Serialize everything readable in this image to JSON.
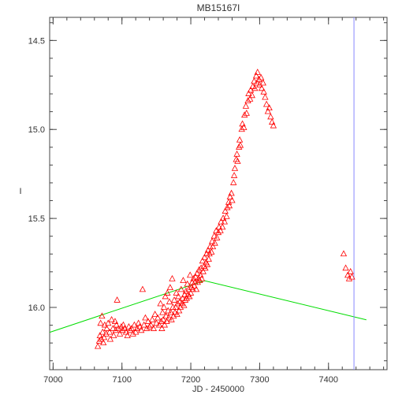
{
  "chart_data": {
    "type": "scatter",
    "title": "MB15167I",
    "xlabel": "JD - 2450000",
    "ylabel": "I",
    "xlim": [
      6995,
      7485
    ],
    "ylim": [
      16.35,
      14.37
    ],
    "y_inverted": true,
    "grid": false,
    "x_ticks": [
      {
        "value": 7000,
        "label": "7000"
      },
      {
        "value": 7100,
        "label": "7100"
      },
      {
        "value": 7200,
        "label": "7200"
      },
      {
        "value": 7300,
        "label": "7300"
      },
      {
        "value": 7400,
        "label": "7400"
      }
    ],
    "y_ticks": [
      {
        "value": 14.5,
        "label": "14.5"
      },
      {
        "value": 15.0,
        "label": "15.0"
      },
      {
        "value": 15.5,
        "label": "15.5"
      },
      {
        "value": 16.0,
        "label": "16.0"
      }
    ],
    "x_minor_step": 20,
    "y_minor_step": 0.1,
    "colors": {
      "observations": "#ff0000",
      "model_line": "#00dd00",
      "vertical_marker": "#8888ff",
      "axes": "#444444"
    },
    "series": [
      {
        "marker": "triangle-open",
        "points": [
          [
            7065,
            16.22
          ],
          [
            7067,
            16.19
          ],
          [
            7068,
            16.16
          ],
          [
            7069,
            16.09
          ],
          [
            7070,
            16.18
          ],
          [
            7071,
            16.05
          ],
          [
            7072,
            16.14
          ],
          [
            7073,
            16.2
          ],
          [
            7074,
            16.17
          ],
          [
            7075,
            16.1
          ],
          [
            7077,
            16.15
          ],
          [
            7078,
            16.12
          ],
          [
            7080,
            16.09
          ],
          [
            7082,
            16.14
          ],
          [
            7083,
            16.18
          ],
          [
            7085,
            16.07
          ],
          [
            7087,
            16.12
          ],
          [
            7088,
            16.16
          ],
          [
            7090,
            16.08
          ],
          [
            7091,
            16.13
          ],
          [
            7092,
            16.1
          ],
          [
            7093,
            15.96
          ],
          [
            7095,
            16.12
          ],
          [
            7097,
            16.15
          ],
          [
            7099,
            16.11
          ],
          [
            7101,
            16.13
          ],
          [
            7102,
            16.1
          ],
          [
            7104,
            16.12
          ],
          [
            7106,
            16.14
          ],
          [
            7108,
            16.16
          ],
          [
            7110,
            16.11
          ],
          [
            7112,
            16.13
          ],
          [
            7114,
            16.12
          ],
          [
            7116,
            16.15
          ],
          [
            7118,
            16.1
          ],
          [
            7120,
            16.14
          ],
          [
            7122,
            16.12
          ],
          [
            7124,
            16.09
          ],
          [
            7126,
            16.11
          ],
          [
            7128,
            16.13
          ],
          [
            7130,
            15.9
          ],
          [
            7132,
            16.1
          ],
          [
            7134,
            16.06
          ],
          [
            7136,
            16.12
          ],
          [
            7138,
            16.08
          ],
          [
            7140,
            16.11
          ],
          [
            7142,
            16.1
          ],
          [
            7144,
            16.07
          ],
          [
            7146,
            16.12
          ],
          [
            7148,
            16.04
          ],
          [
            7150,
            16.09
          ],
          [
            7152,
            16.06
          ],
          [
            7154,
            16.1
          ],
          [
            7156,
            15.98
          ],
          [
            7157,
            16.08
          ],
          [
            7158,
            16.12
          ],
          [
            7159,
            16.03
          ],
          [
            7160,
            16.07
          ],
          [
            7161,
            16.0
          ],
          [
            7162,
            16.1
          ],
          [
            7163,
            15.94
          ],
          [
            7164,
            16.05
          ],
          [
            7165,
            16.08
          ],
          [
            7166,
            15.92
          ],
          [
            7167,
            16.02
          ],
          [
            7168,
            16.06
          ],
          [
            7169,
            15.97
          ],
          [
            7170,
            15.89
          ],
          [
            7171,
            16.03
          ],
          [
            7172,
            16.07
          ],
          [
            7173,
            15.84
          ],
          [
            7174,
            16.0
          ],
          [
            7175,
            16.05
          ],
          [
            7176,
            15.96
          ],
          [
            7177,
            16.03
          ],
          [
            7178,
            16.0
          ],
          [
            7179,
            15.92
          ],
          [
            7180,
            16.04
          ],
          [
            7181,
            15.98
          ],
          [
            7182,
            15.94
          ],
          [
            7183,
            16.02
          ],
          [
            7184,
            15.97
          ],
          [
            7185,
            16.0
          ],
          [
            7186,
            15.9
          ],
          [
            7187,
            15.98
          ],
          [
            7188,
            15.95
          ],
          [
            7189,
            15.85
          ],
          [
            7190,
            15.99
          ],
          [
            7191,
            15.93
          ],
          [
            7192,
            15.96
          ],
          [
            7193,
            15.91
          ],
          [
            7194,
            15.95
          ],
          [
            7195,
            15.87
          ],
          [
            7196,
            15.93
          ],
          [
            7197,
            15.9
          ],
          [
            7198,
            15.94
          ],
          [
            7199,
            15.82
          ],
          [
            7200,
            15.92
          ],
          [
            7201,
            15.89
          ],
          [
            7202,
            15.86
          ],
          [
            7203,
            15.9
          ],
          [
            7204,
            15.84
          ],
          [
            7205,
            15.88
          ],
          [
            7206,
            15.86
          ],
          [
            7207,
            15.83
          ],
          [
            7208,
            15.9
          ],
          [
            7209,
            15.81
          ],
          [
            7210,
            15.86
          ],
          [
            7211,
            15.84
          ],
          [
            7212,
            15.79
          ],
          [
            7213,
            15.85
          ],
          [
            7214,
            15.82
          ],
          [
            7215,
            15.78
          ],
          [
            7216,
            15.84
          ],
          [
            7217,
            15.74
          ],
          [
            7218,
            15.8
          ],
          [
            7219,
            15.77
          ],
          [
            7220,
            15.72
          ],
          [
            7221,
            15.78
          ],
          [
            7222,
            15.75
          ],
          [
            7223,
            15.7
          ],
          [
            7224,
            15.76
          ],
          [
            7225,
            15.68
          ],
          [
            7226,
            15.73
          ],
          [
            7227,
            15.7
          ],
          [
            7228,
            15.66
          ],
          [
            7230,
            15.69
          ],
          [
            7231,
            15.63
          ],
          [
            7232,
            15.66
          ],
          [
            7234,
            15.6
          ],
          [
            7235,
            15.64
          ],
          [
            7237,
            15.57
          ],
          [
            7238,
            15.61
          ],
          [
            7240,
            15.58
          ],
          [
            7241,
            15.55
          ],
          [
            7243,
            15.57
          ],
          [
            7244,
            15.52
          ],
          [
            7246,
            15.55
          ],
          [
            7247,
            15.5
          ],
          [
            7249,
            15.52
          ],
          [
            7250,
            15.46
          ],
          [
            7252,
            15.49
          ],
          [
            7253,
            15.44
          ],
          [
            7255,
            15.41
          ],
          [
            7256,
            15.43
          ],
          [
            7257,
            15.38
          ],
          [
            7259,
            15.36
          ],
          [
            7260,
            15.4
          ],
          [
            7262,
            15.3
          ],
          [
            7263,
            15.26
          ],
          [
            7264,
            15.22
          ],
          [
            7266,
            15.17
          ],
          [
            7267,
            15.14
          ],
          [
            7268,
            15.18
          ],
          [
            7270,
            15.1
          ],
          [
            7271,
            15.06
          ],
          [
            7272,
            15.09
          ],
          [
            7274,
            15.0
          ],
          [
            7275,
            14.97
          ],
          [
            7277,
            14.99
          ],
          [
            7278,
            14.92
          ],
          [
            7280,
            14.87
          ],
          [
            7281,
            14.91
          ],
          [
            7283,
            14.84
          ],
          [
            7284,
            14.8
          ],
          [
            7286,
            14.83
          ],
          [
            7287,
            14.78
          ],
          [
            7289,
            14.81
          ],
          [
            7290,
            14.76
          ],
          [
            7292,
            14.73
          ],
          [
            7293,
            14.77
          ],
          [
            7295,
            14.7
          ],
          [
            7296,
            14.74
          ],
          [
            7297,
            14.68
          ],
          [
            7299,
            14.72
          ],
          [
            7300,
            14.75
          ],
          [
            7302,
            14.71
          ],
          [
            7303,
            14.77
          ],
          [
            7305,
            14.74
          ],
          [
            7306,
            14.79
          ],
          [
            7308,
            14.82
          ],
          [
            7310,
            14.86
          ],
          [
            7312,
            14.9
          ],
          [
            7314,
            14.88
          ],
          [
            7316,
            14.93
          ],
          [
            7318,
            14.96
          ],
          [
            7320,
            14.98
          ],
          [
            7422,
            15.7
          ],
          [
            7425,
            15.78
          ],
          [
            7428,
            15.82
          ],
          [
            7430,
            15.84
          ],
          [
            7432,
            15.8
          ],
          [
            7434,
            15.83
          ]
        ]
      }
    ],
    "model_line": [
      [
        6995,
        16.14
      ],
      [
        7220,
        15.85
      ],
      [
        7455,
        16.07
      ]
    ],
    "vertical_marker_x": 7437
  }
}
